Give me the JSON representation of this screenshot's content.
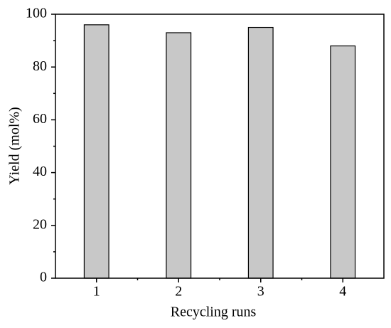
{
  "chart_data": {
    "type": "bar",
    "x_label": "Recycling runs",
    "y_label": "Yield (mol%)",
    "categories": [
      "1",
      "2",
      "3",
      "4"
    ],
    "values": [
      96,
      93,
      95,
      88
    ],
    "color": "#c8c8c8",
    "edge_color": "#000000",
    "ylim": [
      0,
      100
    ],
    "yticks": [
      0,
      20,
      40,
      60,
      80,
      100
    ],
    "grid": false
  }
}
